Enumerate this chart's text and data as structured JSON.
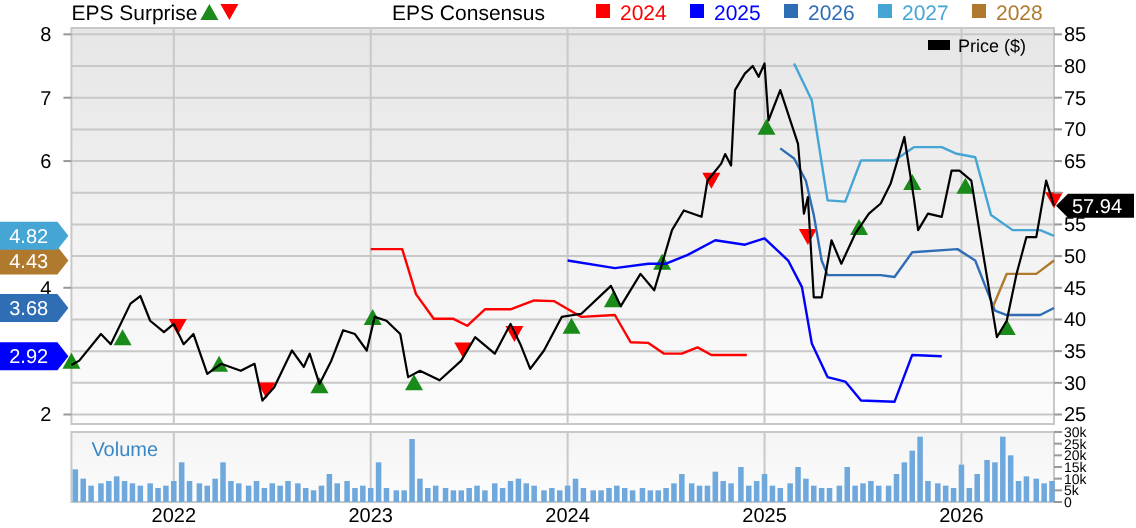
{
  "chart_data": [
    {
      "type": "line",
      "annotations": [
        "EPS Surprise"
      ],
      "legend": "top",
      "legend_title": "EPS Consensus",
      "grid": true,
      "tick_labels": "y",
      "xlim": [
        2021.48,
        2026.47
      ],
      "xticks": [
        2022,
        2023,
        2024,
        2025,
        2026
      ],
      "ylim": [
        1.85,
        8.1
      ],
      "yticks": [
        2,
        2.92,
        3.68,
        4,
        4.43,
        4.82,
        6,
        7,
        8
      ],
      "y2lim": [
        23.5,
        86
      ],
      "y2ticks": [
        25,
        30,
        35,
        40,
        45,
        50,
        55,
        {
          "value": 60,
          "label": null
        },
        65,
        70,
        75,
        80,
        85
      ],
      "series": [
        {
          "name": "2024",
          "color": "#ff0000",
          "x": [
            2023.0,
            2023.16,
            2023.23,
            2023.32,
            2023.42,
            2023.49,
            2023.58,
            2023.71,
            2023.83,
            2023.93,
            2024.07,
            2024.24,
            2024.32,
            2024.41,
            2024.49,
            2024.58,
            2024.66,
            2024.73,
            2024.91
          ],
          "values": [
            4.61,
            4.61,
            3.9,
            3.51,
            3.51,
            3.4,
            3.66,
            3.66,
            3.8,
            3.79,
            3.54,
            3.57,
            3.14,
            3.13,
            2.96,
            2.96,
            3.06,
            2.94,
            2.94
          ]
        },
        {
          "name": "2025",
          "color": "#0000ff",
          "x": [
            2024.0,
            2024.24,
            2024.41,
            2024.5,
            2024.61,
            2024.75,
            2024.9,
            2025.0,
            2025.12,
            2025.19,
            2025.24,
            2025.32,
            2025.41,
            2025.49,
            2025.66,
            2025.75,
            2025.9
          ],
          "values": [
            4.43,
            4.31,
            4.38,
            4.38,
            4.52,
            4.75,
            4.68,
            4.78,
            4.43,
            4.01,
            3.12,
            2.59,
            2.52,
            2.22,
            2.2,
            2.94,
            2.92
          ]
        },
        {
          "name": "2026",
          "color": "#2f6db5",
          "x": [
            2025.08,
            2025.15,
            2025.21,
            2025.25,
            2025.29,
            2025.32,
            2025.59,
            2025.66,
            2025.75,
            2025.98,
            2026.07,
            2026.17,
            2026.23,
            2026.4,
            2026.47
          ],
          "values": [
            6.2,
            6.04,
            5.69,
            5.15,
            4.43,
            4.2,
            4.2,
            4.17,
            4.56,
            4.61,
            4.43,
            3.64,
            3.57,
            3.57,
            3.68
          ]
        },
        {
          "name": "2027",
          "color": "#45a5d5",
          "x": [
            2025.15,
            2025.24,
            2025.32,
            2025.41,
            2025.49,
            2025.66,
            2025.76,
            2025.9,
            2025.97,
            2026.07,
            2026.15,
            2026.26,
            2026.4,
            2026.47
          ],
          "values": [
            7.54,
            6.96,
            5.38,
            5.36,
            6.01,
            6.01,
            6.22,
            6.22,
            6.12,
            6.06,
            5.15,
            4.91,
            4.91,
            4.82
          ]
        },
        {
          "name": "2028",
          "color": "#b07a2e",
          "x": [
            2026.16,
            2026.23,
            2026.38,
            2026.47
          ],
          "values": [
            3.7,
            4.22,
            4.22,
            4.43
          ]
        },
        {
          "name": "Price ($)",
          "color": "#000000",
          "axis": "y2",
          "x": [
            2021.48,
            2021.52,
            2021.63,
            2021.68,
            2021.78,
            2021.83,
            2021.88,
            2021.95,
            2022.0,
            2022.05,
            2022.1,
            2022.17,
            2022.24,
            2022.34,
            2022.41,
            2022.45,
            2022.51,
            2022.6,
            2022.66,
            2022.69,
            2022.74,
            2022.8,
            2022.86,
            2022.92,
            2022.98,
            2023.02,
            2023.08,
            2023.15,
            2023.19,
            2023.25,
            2023.35,
            2023.46,
            2023.53,
            2023.63,
            2023.71,
            2023.76,
            2023.81,
            2023.88,
            2023.97,
            2024.07,
            2024.22,
            2024.27,
            2024.37,
            2024.44,
            2024.53,
            2024.59,
            2024.68,
            2024.71,
            2024.78,
            2024.8,
            2024.83,
            2024.85,
            2024.9,
            2024.94,
            2024.97,
            2025.0,
            2025.02,
            2025.08,
            2025.17,
            2025.2,
            2025.22,
            2025.25,
            2025.29,
            2025.34,
            2025.39,
            2025.46,
            2025.53,
            2025.59,
            2025.64,
            2025.71,
            2025.76,
            2025.78,
            2025.83,
            2025.9,
            2025.95,
            2025.99,
            2026.05,
            2026.11,
            2026.18,
            2026.23,
            2026.28,
            2026.33,
            2026.38,
            2026.43,
            2026.47
          ],
          "values": [
            32.8,
            33.5,
            37.7,
            36.1,
            42.5,
            43.7,
            39.8,
            38.0,
            39.3,
            36.1,
            37.7,
            31.4,
            33.0,
            31.9,
            33.0,
            27.2,
            29.3,
            35.1,
            32.5,
            34.6,
            29.8,
            33.5,
            38.3,
            37.7,
            35.1,
            40.4,
            39.8,
            37.7,
            30.9,
            31.9,
            30.4,
            33.5,
            37.2,
            34.6,
            39.3,
            36.1,
            32.2,
            35.1,
            40.4,
            40.9,
            45.3,
            42.1,
            47.2,
            44.6,
            54.1,
            57.2,
            56.2,
            61.9,
            64.6,
            66.1,
            64.3,
            76.2,
            78.8,
            80.0,
            78.3,
            80.4,
            71.4,
            76.2,
            67.7,
            56.7,
            59.3,
            43.5,
            43.5,
            52.5,
            48.8,
            53.5,
            56.7,
            58.3,
            61.4,
            68.8,
            58.8,
            54.1,
            56.7,
            56.2,
            63.5,
            63.5,
            61.9,
            50.4,
            37.2,
            39.8,
            47.2,
            53.0,
            53.0,
            61.9,
            57.94
          ],
          "value_labels": [
            null,
            null,
            null,
            null,
            null,
            null,
            null,
            null,
            null,
            null,
            null,
            null,
            null,
            null,
            null,
            null,
            null,
            null,
            null,
            null,
            null,
            null,
            null,
            null,
            null,
            null,
            null,
            null,
            null,
            null,
            null,
            null,
            null,
            null,
            null,
            null,
            null,
            null,
            null,
            null,
            null,
            null,
            null,
            null,
            null,
            null,
            null,
            null,
            null,
            null,
            null,
            null,
            null,
            null,
            null,
            null,
            null,
            null,
            null,
            null,
            null,
            null,
            null,
            null,
            null,
            null,
            null,
            null,
            null,
            null,
            null,
            null,
            null,
            null,
            null,
            null,
            null,
            null,
            null,
            null,
            null,
            null,
            null,
            null,
            "57.94"
          ]
        },
        {
          "type": "scatter",
          "marker": "triangle",
          "color": "#1a8a1a",
          "axis": "y2",
          "x": [
            2021.48,
            2021.74,
            2022.23,
            2022.74,
            2023.01,
            2023.22,
            2024.02,
            2024.23,
            2024.48,
            2025.01,
            2025.48,
            2025.75,
            2026.02,
            2026.23
          ],
          "values": [
            33.5,
            37.2,
            33.0,
            29.6,
            40.4,
            30.1,
            39.0,
            43.2,
            49.1,
            70.4,
            54.6,
            61.7,
            61.1,
            38.8
          ]
        },
        {
          "type": "scatter",
          "marker": "triangle",
          "color": "#ff0000",
          "axis": "y2",
          "x": [
            2022.02,
            2022.47,
            2023.47,
            2023.73,
            2024.73,
            2025.22,
            2026.47
          ],
          "values": [
            38.8,
            28.8,
            35.1,
            37.7,
            61.9,
            53.0,
            58.8
          ]
        }
      ]
    },
    {
      "type": "bar",
      "title": "Volume",
      "grid": "x",
      "xlim": [
        2021.48,
        2026.47
      ],
      "xticks": [
        2022,
        2023,
        2024,
        2025,
        2026
      ],
      "y2lim": [
        0,
        30000
      ],
      "y2ticks": [
        0,
        {
          "value": 5000,
          "label": "5k"
        },
        {
          "value": 10000,
          "label": "10k"
        },
        {
          "value": 15000,
          "label": "15k"
        },
        {
          "value": 20000,
          "label": "20k"
        },
        {
          "value": 25000,
          "label": "25k"
        },
        {
          "value": 30000,
          "label": "30k"
        }
      ],
      "series": [
        {
          "color": "#6fa8dc",
          "axis": "y2",
          "x": [
            2021.5,
            2021.54,
            2021.58,
            2021.63,
            2021.67,
            2021.71,
            2021.75,
            2021.79,
            2021.83,
            2021.88,
            2021.92,
            2021.96,
            2022.0,
            2022.04,
            2022.08,
            2022.13,
            2022.17,
            2022.21,
            2022.25,
            2022.29,
            2022.33,
            2022.38,
            2022.42,
            2022.46,
            2022.5,
            2022.54,
            2022.58,
            2022.63,
            2022.67,
            2022.71,
            2022.75,
            2022.79,
            2022.83,
            2022.88,
            2022.92,
            2022.96,
            2023.0,
            2023.04,
            2023.08,
            2023.13,
            2023.17,
            2023.21,
            2023.25,
            2023.29,
            2023.33,
            2023.38,
            2023.42,
            2023.46,
            2023.5,
            2023.54,
            2023.58,
            2023.63,
            2023.67,
            2023.71,
            2023.75,
            2023.79,
            2023.83,
            2023.88,
            2023.92,
            2023.96,
            2024.0,
            2024.04,
            2024.08,
            2024.13,
            2024.17,
            2024.21,
            2024.25,
            2024.29,
            2024.33,
            2024.38,
            2024.42,
            2024.46,
            2024.5,
            2024.54,
            2024.58,
            2024.63,
            2024.67,
            2024.71,
            2024.75,
            2024.79,
            2024.83,
            2024.88,
            2024.92,
            2024.96,
            2025.0,
            2025.04,
            2025.08,
            2025.13,
            2025.17,
            2025.21,
            2025.25,
            2025.29,
            2025.33,
            2025.38,
            2025.42,
            2025.46,
            2025.5,
            2025.54,
            2025.58,
            2025.63,
            2025.67,
            2025.71,
            2025.75,
            2025.79,
            2025.83,
            2025.88,
            2025.92,
            2025.96,
            2026.0,
            2026.04,
            2026.08,
            2026.13,
            2026.17,
            2026.21,
            2026.25,
            2026.29,
            2026.33,
            2026.38,
            2026.42,
            2026.46
          ],
          "values": [
            14000,
            10000,
            7000,
            8000,
            9000,
            11000,
            9000,
            8000,
            7000,
            8000,
            6000,
            7000,
            9000,
            17000,
            9000,
            8000,
            7000,
            10000,
            17000,
            9000,
            8000,
            7000,
            9000,
            6000,
            8000,
            7000,
            9000,
            8000,
            6000,
            5000,
            7000,
            12000,
            8000,
            9000,
            6000,
            7000,
            6000,
            17000,
            6000,
            5000,
            5000,
            27000,
            10000,
            6000,
            7000,
            6000,
            5000,
            5000,
            6000,
            7000,
            5000,
            8000,
            6000,
            9000,
            10000,
            8000,
            7000,
            5000,
            6000,
            5000,
            7000,
            10000,
            6000,
            5000,
            5000,
            6000,
            7000,
            6000,
            5000,
            6000,
            5000,
            5000,
            6000,
            8000,
            12000,
            8000,
            7000,
            7000,
            13000,
            9000,
            8000,
            15000,
            7000,
            9000,
            12000,
            7000,
            6000,
            8000,
            15000,
            10000,
            7000,
            6000,
            6000,
            7000,
            15000,
            7000,
            8000,
            9000,
            7000,
            7000,
            12000,
            17000,
            22000,
            28000,
            9000,
            8000,
            7000,
            6000,
            16000,
            6000,
            12000,
            18000,
            17000,
            28000,
            20000,
            9000,
            11000,
            10000,
            8000,
            9000
          ]
        }
      ]
    }
  ]
}
